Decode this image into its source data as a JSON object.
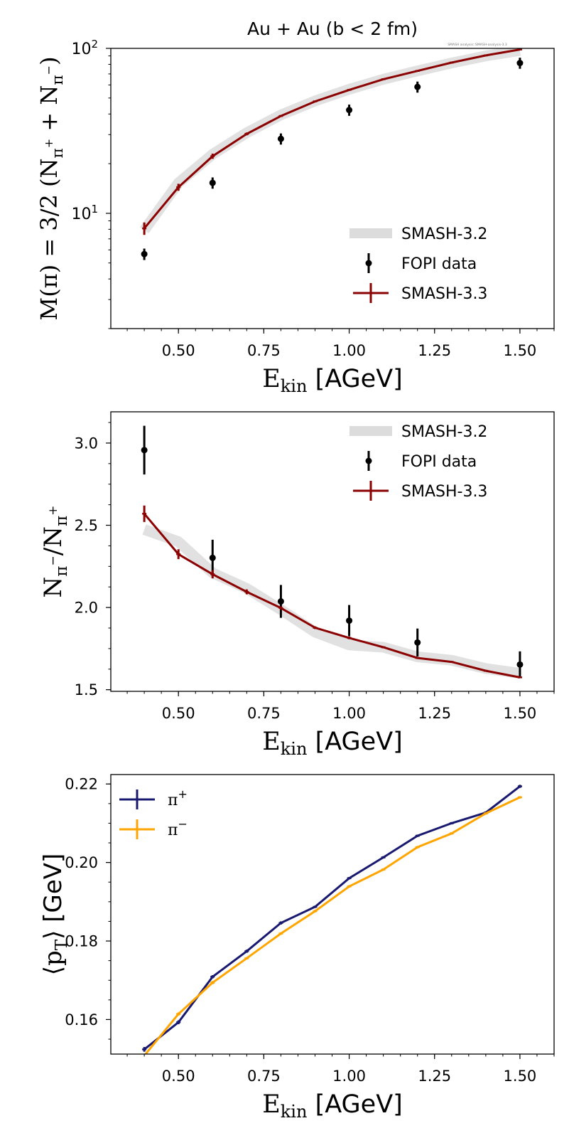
{
  "figure": {
    "title": "Au + Au (b < 2 fm)",
    "annotation": "SMASH analysis::SMASH-analysis-3.3"
  },
  "colors": {
    "smash32": "#dcdcdc",
    "smash33": "#8b0000",
    "fopi": "#000000",
    "pi_plus": "#191970",
    "pi_minus": "#ffa500"
  },
  "chart_data": [
    {
      "type": "line",
      "title": "Au + Au (b < 2 fm)",
      "xlabel": {
        "main": "E",
        "sub": "kin",
        "unit": " [AGeV]"
      },
      "ylabel": [
        {
          "text": "M(π) = 3/2 (N"
        },
        {
          "text": "π",
          "shift": "sub"
        },
        {
          "text": "+",
          "shift": "subsup"
        },
        {
          "text": " + N"
        },
        {
          "text": "π",
          "shift": "sub"
        },
        {
          "text": "−",
          "shift": "subsup"
        },
        {
          "text": ")"
        }
      ],
      "yscale": "log",
      "xlim": [
        0.302,
        1.6
      ],
      "ylim": [
        2.0,
        100
      ],
      "xticks": [
        0.5,
        0.75,
        1.0,
        1.25,
        1.5
      ],
      "xticklabels": [
        "0.50",
        "0.75",
        "1.00",
        "1.25",
        "1.50"
      ],
      "yticks": [
        10,
        100
      ],
      "yticklabels": [
        {
          "base": "10",
          "exp": "1"
        },
        {
          "base": "10",
          "exp": "2"
        }
      ],
      "legend": {
        "placement": "lower-right",
        "entries": [
          "SMASH-3.2",
          "FOPI data",
          "SMASH-3.3"
        ]
      },
      "series": [
        {
          "name": "SMASH-3.2",
          "style": "band",
          "x": [
            0.4,
            0.5,
            0.6,
            0.7,
            0.8,
            0.9,
            1.0,
            1.1,
            1.2,
            1.3,
            1.4,
            1.5
          ],
          "y": [
            7.9,
            15.3,
            22.8,
            30.8,
            39.5,
            48,
            56.5,
            65,
            73,
            81.5,
            90,
            97
          ]
        },
        {
          "name": "FOPI data",
          "style": "points",
          "x": [
            0.4,
            0.6,
            0.8,
            1.0,
            1.2,
            1.5
          ],
          "y": [
            5.66,
            15.3,
            28.3,
            42.3,
            58.4,
            81.5
          ],
          "err": [
            0.45,
            1.2,
            2.2,
            3.3,
            4.5,
            6.3
          ]
        },
        {
          "name": "SMASH-3.3",
          "style": "line",
          "x": [
            0.4,
            0.5,
            0.6,
            0.7,
            0.8,
            0.9,
            1.0,
            1.1,
            1.2,
            1.3,
            1.4,
            1.5
          ],
          "y": [
            8.1,
            14.4,
            22.2,
            30.3,
            38.9,
            47.7,
            56,
            65,
            73,
            82,
            90.6,
            98.4
          ],
          "err": [
            0.7,
            0.7,
            0.8,
            0.6,
            0.5,
            0.4,
            0.5,
            0.4,
            0.5,
            0.4,
            0.4,
            0.5
          ]
        }
      ]
    },
    {
      "type": "line",
      "title": "",
      "xlabel": {
        "main": "E",
        "sub": "kin",
        "unit": " [AGeV]"
      },
      "ylabel": [
        {
          "text": "N"
        },
        {
          "text": "π",
          "shift": "sub"
        },
        {
          "text": "−",
          "shift": "subsup"
        },
        {
          "text": "/N"
        },
        {
          "text": "π",
          "shift": "sub"
        },
        {
          "text": "+",
          "shift": "subsup"
        }
      ],
      "yscale": "linear",
      "xlim": [
        0.302,
        1.6
      ],
      "ylim": [
        1.49,
        3.19
      ],
      "xticks": [
        0.5,
        0.75,
        1.0,
        1.25,
        1.5
      ],
      "xticklabels": [
        "0.50",
        "0.75",
        "1.00",
        "1.25",
        "1.50"
      ],
      "yticks": [
        1.5,
        2.0,
        2.5,
        3.0
      ],
      "yticklabels": [
        "1.5",
        "2.0",
        "2.5",
        "3.0"
      ],
      "legend": {
        "placement": "upper-right",
        "entries": [
          "SMASH-3.2",
          "FOPI data",
          "SMASH-3.3"
        ]
      },
      "series": [
        {
          "name": "SMASH-3.2",
          "style": "band",
          "x": [
            0.4,
            0.5,
            0.6,
            0.7,
            0.8,
            0.9,
            1.0,
            1.1,
            1.2,
            1.3,
            1.4,
            1.5
          ],
          "y": [
            2.474,
            2.4,
            2.21,
            2.116,
            1.987,
            1.85,
            1.772,
            1.758,
            1.7,
            1.679,
            1.629,
            1.6
          ]
        },
        {
          "name": "FOPI data",
          "style": "points",
          "x": [
            0.4,
            0.6,
            0.8,
            1.0,
            1.2,
            1.5
          ],
          "y": [
            2.957,
            2.302,
            2.037,
            1.92,
            1.787,
            1.653
          ],
          "err": [
            0.148,
            0.11,
            0.1,
            0.095,
            0.085,
            0.08
          ]
        },
        {
          "name": "SMASH-3.3",
          "style": "line",
          "x": [
            0.4,
            0.5,
            0.6,
            0.7,
            0.8,
            0.9,
            1.0,
            1.1,
            1.2,
            1.3,
            1.4,
            1.5
          ],
          "y": [
            2.57,
            2.324,
            2.202,
            2.095,
            1.997,
            1.877,
            1.815,
            1.758,
            1.693,
            1.669,
            1.615,
            1.575
          ],
          "err": [
            0.05,
            0.03,
            0.025,
            0.015,
            0.01,
            0.008,
            0.008,
            0.006,
            0.006,
            0.005,
            0.005,
            0.005
          ]
        }
      ]
    },
    {
      "type": "line",
      "title": "",
      "xlabel": {
        "main": "E",
        "sub": "kin",
        "unit": " [AGeV]"
      },
      "ylabel": [
        {
          "text": "⟨p"
        },
        {
          "text": "T",
          "shift": "sub"
        },
        {
          "text": "⟩ [GeV]",
          "font": "sans"
        }
      ],
      "yscale": "linear",
      "xlim": [
        0.302,
        1.6
      ],
      "ylim": [
        0.1512,
        0.2224
      ],
      "xticks": [
        0.5,
        0.75,
        1.0,
        1.25,
        1.5
      ],
      "xticklabels": [
        "0.50",
        "0.75",
        "1.00",
        "1.25",
        "1.50"
      ],
      "yticks": [
        0.16,
        0.18,
        0.2,
        0.22
      ],
      "yticklabels": [
        "0.16",
        "0.18",
        "0.20",
        "0.22"
      ],
      "legend": {
        "placement": "upper-left",
        "entries": [
          "π+",
          "π−"
        ]
      },
      "series": [
        {
          "name": "π+",
          "label_base": "π",
          "label_sup": "+",
          "style": "line",
          "color_key": "pi_plus",
          "x": [
            0.4,
            0.5,
            0.6,
            0.7,
            0.8,
            0.9,
            1.0,
            1.1,
            1.2,
            1.3,
            1.4,
            1.5
          ],
          "y": [
            0.1524,
            0.1593,
            0.1709,
            0.1774,
            0.1846,
            0.1887,
            0.196,
            0.2013,
            0.2068,
            0.21,
            0.2127,
            0.2194
          ],
          "err": [
            0.0006,
            0.0005,
            0.0004,
            0.0004,
            0.0004,
            0.0003,
            0.0003,
            0.0003,
            0.0003,
            0.0003,
            0.0003,
            0.0004
          ]
        },
        {
          "name": "π−",
          "label_base": "π",
          "label_sup": "−",
          "style": "line",
          "color_key": "pi_minus",
          "x": [
            0.4,
            0.5,
            0.6,
            0.7,
            0.8,
            0.9,
            1.0,
            1.1,
            1.2,
            1.3,
            1.4,
            1.5
          ],
          "y": [
            0.1508,
            0.1614,
            0.1694,
            0.1756,
            0.1819,
            0.1876,
            0.1939,
            0.1982,
            0.2039,
            0.2074,
            0.2125,
            0.2166
          ],
          "err": [
            0.0005,
            0.0004,
            0.0004,
            0.0003,
            0.0003,
            0.0003,
            0.0003,
            0.0003,
            0.0003,
            0.0003,
            0.0003,
            0.0003
          ]
        }
      ]
    }
  ]
}
